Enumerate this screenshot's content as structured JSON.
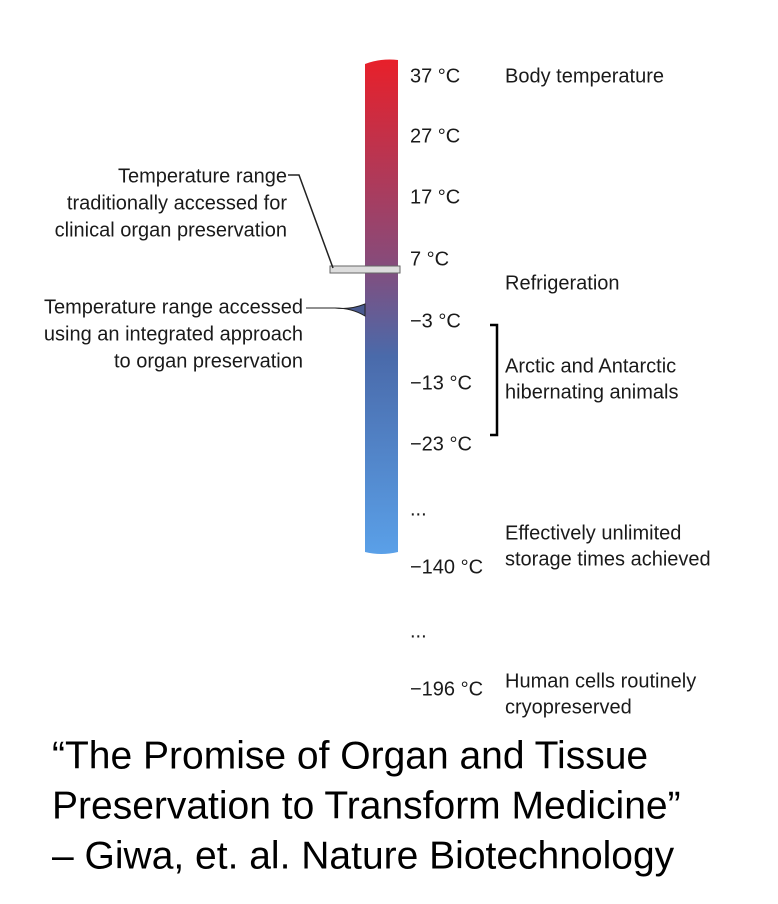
{
  "scale": {
    "labels": [
      "37 °C",
      "27 °C",
      "17 °C",
      "7 °C",
      "−3 °C",
      "−13 °C",
      "−23 °C",
      "...",
      "−140 °C",
      "...",
      "−196 °C"
    ]
  },
  "descriptions": [
    {
      "lines": [
        "Body temperature"
      ]
    },
    {
      "lines": [
        "Refrigeration"
      ]
    },
    {
      "lines": [
        "Arctic and Antarctic",
        "hibernating animals"
      ]
    },
    {
      "lines": [
        "Effectively unlimited",
        "storage times achieved"
      ]
    },
    {
      "lines": [
        "Human cells routinely",
        "cryopreserved"
      ]
    }
  ],
  "annotations": [
    {
      "lines": [
        "Temperature range",
        "traditionally accessed for",
        "clinical organ preservation"
      ]
    },
    {
      "lines": [
        "Temperature range accessed",
        "using an integrated approach",
        "to organ preservation"
      ]
    }
  ],
  "caption": {
    "lines": [
      "“The Promise of Organ and Tissue",
      "Preservation to Transform Medicine”",
      "– Giwa, et. al. Nature Biotechnology"
    ]
  }
}
